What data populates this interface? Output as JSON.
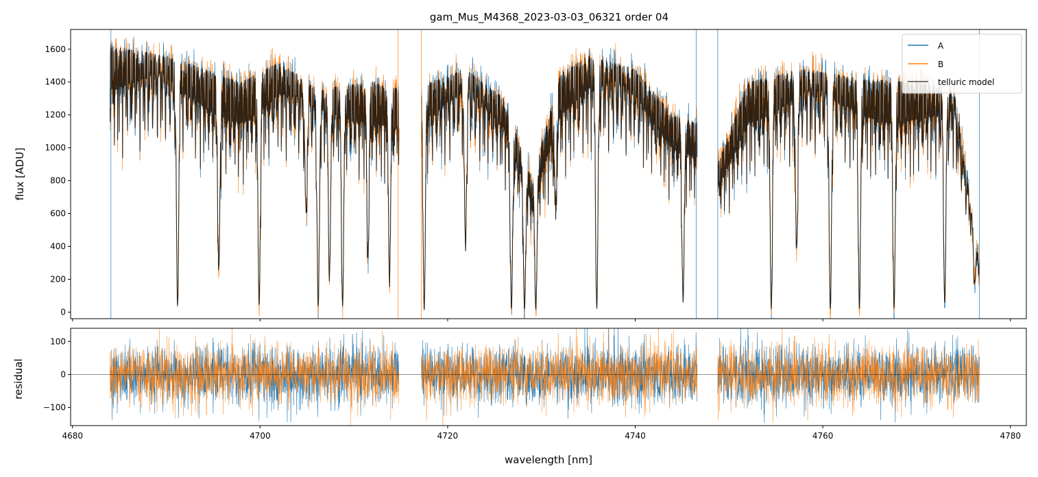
{
  "chart_data": [
    {
      "type": "line",
      "title": "gam_Mus_M4368_2023-03-03_06321  order 04",
      "xlabel": "",
      "ylabel": "flux [ADU]",
      "xlim": [
        4679.8,
        4781.7
      ],
      "ylim": [
        -40,
        1720
      ],
      "yticks": [
        0,
        200,
        400,
        600,
        800,
        1000,
        1200,
        1400,
        1600
      ],
      "xticks": [
        4680,
        4700,
        4720,
        4740,
        4760,
        4780
      ],
      "grid": false,
      "legend_position": "top-right",
      "segments": [
        [
          4684.0,
          4714.8
        ],
        [
          4717.2,
          4746.6
        ],
        [
          4748.8,
          4776.7
        ]
      ],
      "continuum_approx": [
        [
          4684.0,
          1620
        ],
        [
          4690.0,
          1560
        ],
        [
          4694.0,
          1480
        ],
        [
          4698.0,
          1400
        ],
        [
          4702.0,
          1520
        ],
        [
          4706.0,
          1360
        ],
        [
          4712.0,
          1400
        ],
        [
          4714.8,
          1360
        ],
        [
          4717.2,
          1380
        ],
        [
          4722.0,
          1480
        ],
        [
          4726.0,
          1300
        ],
        [
          4729.0,
          800
        ],
        [
          4732.0,
          1450
        ],
        [
          4735.0,
          1560
        ],
        [
          4740.0,
          1480
        ],
        [
          4744.0,
          1200
        ],
        [
          4746.6,
          1150
        ],
        [
          4748.8,
          900
        ],
        [
          4752.0,
          1400
        ],
        [
          4758.0,
          1480
        ],
        [
          4764.0,
          1420
        ],
        [
          4770.0,
          1400
        ],
        [
          4774.0,
          1350
        ],
        [
          4776.7,
          300
        ]
      ],
      "absorption_lines_approx": [
        [
          4691.2,
          40
        ],
        [
          4695.6,
          280
        ],
        [
          4699.9,
          50
        ],
        [
          4704.9,
          650
        ],
        [
          4706.2,
          40
        ],
        [
          4707.4,
          250
        ],
        [
          4708.8,
          40
        ],
        [
          4711.5,
          400
        ],
        [
          4713.8,
          250
        ],
        [
          4717.5,
          20
        ],
        [
          4721.9,
          450
        ],
        [
          4726.8,
          20
        ],
        [
          4728.2,
          20
        ],
        [
          4729.4,
          20
        ],
        [
          4731.5,
          700
        ],
        [
          4735.9,
          20
        ],
        [
          4745.1,
          80
        ],
        [
          4754.5,
          20
        ],
        [
          4757.2,
          400
        ],
        [
          4760.8,
          20
        ],
        [
          4763.9,
          20
        ],
        [
          4767.6,
          20
        ],
        [
          4773.0,
          60
        ],
        [
          4776.2,
          200
        ]
      ],
      "series": [
        {
          "name": "A",
          "color": "#1f77b4"
        },
        {
          "name": "B",
          "color": "#ff7f0e"
        },
        {
          "name": "telluric model",
          "color": "#000000"
        }
      ]
    },
    {
      "type": "line",
      "title": "",
      "xlabel": "wavelength [nm]",
      "ylabel": "residual",
      "xlim": [
        4679.8,
        4781.7
      ],
      "ylim": [
        -155,
        140
      ],
      "yticks": [
        -100,
        0,
        100
      ],
      "xticks": [
        4680,
        4700,
        4720,
        4740,
        4760,
        4780
      ],
      "grid": false,
      "residual_std_approx": 45,
      "series": [
        {
          "name": "A",
          "color": "#1f77b4"
        },
        {
          "name": "B",
          "color": "#ff7f0e"
        }
      ]
    }
  ]
}
